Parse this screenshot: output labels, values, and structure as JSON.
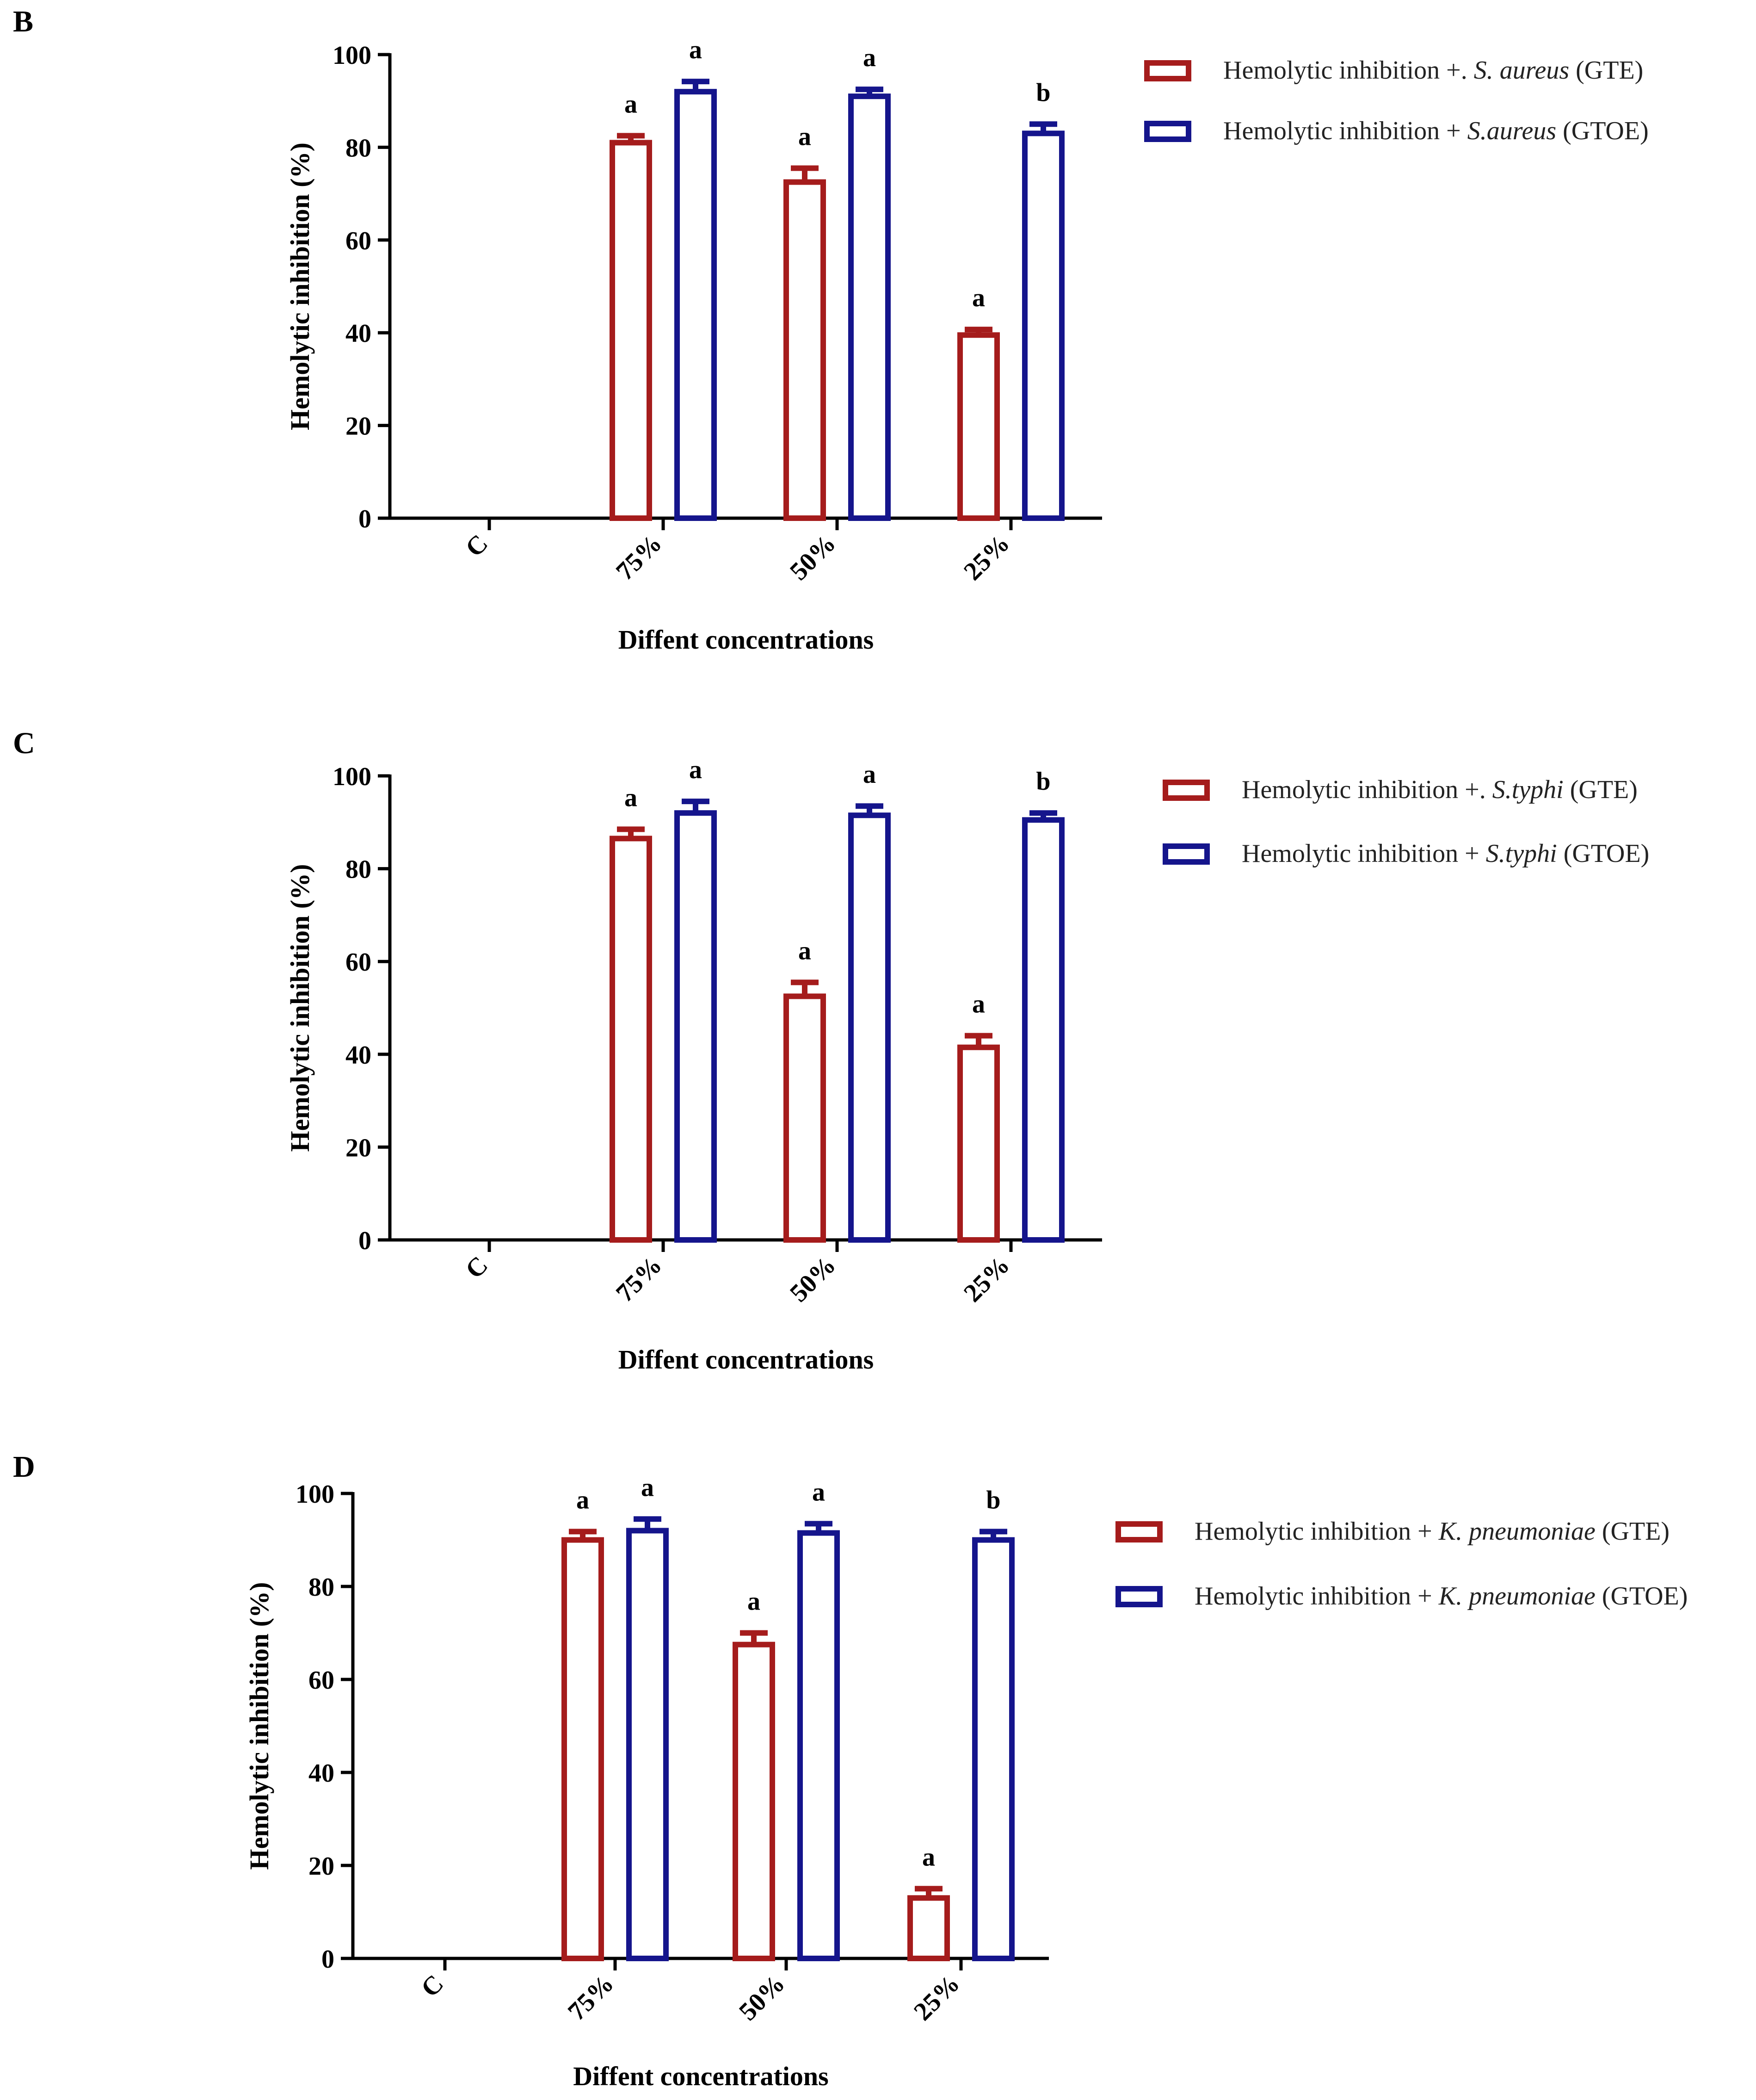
{
  "colors": {
    "red_series": "#a51c1c",
    "blue_series": "#15158c",
    "axis": "#000000"
  },
  "chart_data": [
    {
      "panel": "B",
      "type": "bar",
      "title": "",
      "xlabel": "Diffent concentrations",
      "ylabel": "Hemolytic inhibition (%)",
      "ylim": [
        0,
        100
      ],
      "yticks": [
        "0",
        "20",
        "40",
        "60",
        "80",
        "100"
      ],
      "categories": [
        "C",
        "75%",
        "50%",
        "25%"
      ],
      "series": [
        {
          "name": "GTE",
          "color": "#a51c1c",
          "legend": {
            "prefix": "Hemolytic inhibition +. ",
            "organism": "S. aureus",
            "suffix": " (GTE)"
          },
          "values": [
            null,
            81,
            72.5,
            39.5
          ],
          "errors": [
            null,
            1.5,
            3,
            1.2
          ],
          "labels": [
            "",
            "a",
            "a",
            "a"
          ]
        },
        {
          "name": "GTOE",
          "color": "#15158c",
          "legend": {
            "prefix": "Hemolytic inhibition + ",
            "organism": "S.aureus",
            "suffix": " (GTOE)"
          },
          "values": [
            null,
            92,
            91,
            83
          ],
          "errors": [
            null,
            2.2,
            1.5,
            2
          ],
          "labels": [
            "",
            "a",
            "a",
            "b"
          ]
        }
      ]
    },
    {
      "panel": "C",
      "type": "bar",
      "title": "",
      "xlabel": "Diffent concentrations",
      "ylabel": "Hemolytic inhibition (%)",
      "ylim": [
        0,
        100
      ],
      "yticks": [
        "0",
        "20",
        "40",
        "60",
        "80",
        "100"
      ],
      "categories": [
        "C",
        "75%",
        "50%",
        "25%"
      ],
      "series": [
        {
          "name": "GTE",
          "color": "#a51c1c",
          "legend": {
            "prefix": "Hemolytic inhibition +. ",
            "organism": "S.typhi",
            "suffix": " (GTE)"
          },
          "values": [
            null,
            86.5,
            52.5,
            41.5
          ],
          "errors": [
            null,
            2,
            3,
            2.5
          ],
          "labels": [
            "",
            "a",
            "a",
            "a"
          ]
        },
        {
          "name": "GTOE",
          "color": "#15158c",
          "legend": {
            "prefix": "Hemolytic inhibition + ",
            "organism": "S.typhi",
            "suffix": " (GTOE)"
          },
          "values": [
            null,
            92,
            91.5,
            90.5
          ],
          "errors": [
            null,
            2.5,
            2,
            1.5
          ],
          "labels": [
            "",
            "a",
            "a",
            "b"
          ]
        }
      ]
    },
    {
      "panel": "D",
      "type": "bar",
      "title": "",
      "xlabel": "Diffent concentrations",
      "ylabel": "Hemolytic inhibition (%)",
      "ylim": [
        0,
        100
      ],
      "yticks": [
        "0",
        "20",
        "40",
        "60",
        "80",
        "100"
      ],
      "categories": [
        "C",
        "75%",
        "50%",
        "25%"
      ],
      "series": [
        {
          "name": "GTE",
          "color": "#a51c1c",
          "legend": {
            "prefix": "Hemolytic inhibition + ",
            "organism": "K. pneumoniae",
            "suffix": " (GTE)"
          },
          "values": [
            null,
            90,
            67.5,
            13
          ],
          "errors": [
            null,
            1.8,
            2.5,
            2
          ],
          "labels": [
            "",
            "a",
            "a",
            "a"
          ]
        },
        {
          "name": "GTOE",
          "color": "#15158c",
          "legend": {
            "prefix": "Hemolytic inhibition + ",
            "organism": "K. pneumoniae",
            "suffix": " (GTOE)"
          },
          "values": [
            null,
            92,
            91.5,
            90
          ],
          "errors": [
            null,
            2.5,
            2,
            1.8
          ],
          "labels": [
            "",
            "a",
            "a",
            "b"
          ]
        }
      ]
    }
  ]
}
